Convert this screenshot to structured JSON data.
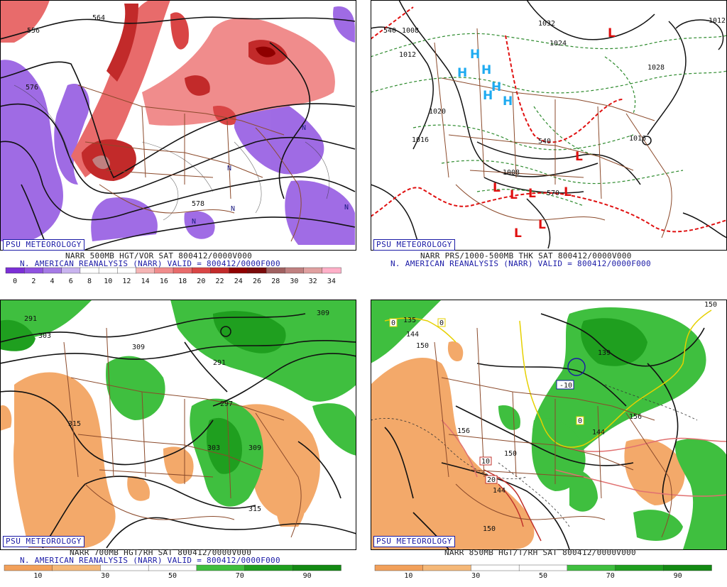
{
  "panels": [
    {
      "id": "p1",
      "badge": "PSU METEOROLOGY",
      "caption1": "NARR 500MB HGT/VOR SAT 800412/0000V000",
      "caption2": "N. AMERICAN REANALYSIS (NARR) VALID = 800412/0000F000",
      "colorbar_ticks": [
        "0",
        "2",
        "4",
        "6",
        "8",
        "10",
        "12",
        "14",
        "16",
        "18",
        "20",
        "22",
        "24",
        "26",
        "28",
        "30",
        "32",
        "34"
      ],
      "contour_labels": [
        "556",
        "564",
        "576",
        "578"
      ],
      "markers": [
        "N",
        "N",
        "N",
        "N",
        "N"
      ]
    },
    {
      "id": "p2",
      "badge": "PSU METEOROLOGY",
      "caption1": "NARR PRS/1000-500MB THK SAT 800412/0000V000",
      "caption2": "N. AMERICAN REANALYSIS (NARR) VALID = 800412/0000F000",
      "contour_labels": [
        "540",
        "1008",
        "1012",
        "1032",
        "1024",
        "1020",
        "1016",
        "1016",
        "1008",
        "540",
        "570",
        "1012",
        "1028"
      ],
      "highs": [
        "H",
        "H",
        "H",
        "H",
        "H",
        "H"
      ],
      "lows": [
        "L",
        "L",
        "L",
        "L",
        "L",
        "L",
        "L",
        "L"
      ]
    },
    {
      "id": "p3",
      "badge": "PSU METEOROLOGY",
      "caption1": "NARR 700MB HGT/RH SAT 800412/0000V000",
      "caption2": "N. AMERICAN REANALYSIS (NARR) VALID = 800412/0000F000",
      "colorbar_ticks": [
        "10",
        "30",
        "50",
        "70",
        "90"
      ],
      "contour_labels": [
        "291",
        "303",
        "309",
        "309",
        "291",
        "297",
        "315",
        "303",
        "309",
        "315"
      ]
    },
    {
      "id": "p4",
      "badge": "PSU METEOROLOGY",
      "caption1": "NARR 850MB HGT/T/RH SAT 800412/0000V000",
      "colorbar_ticks": [
        "10",
        "30",
        "50",
        "70",
        "90"
      ],
      "contour_labels": [
        "135",
        "144",
        "150",
        "139",
        "-10",
        "156",
        "150",
        "144",
        "156",
        "150",
        "10",
        "20",
        "144",
        "150",
        "0",
        "0",
        "0"
      ]
    }
  ],
  "colors": {
    "vor_scale": [
      "#7b2fd6",
      "#8f52e0",
      "#a57ae6",
      "#c9b4ef",
      "#ffffff",
      "#ffffff",
      "#ffffff",
      "#f5b5b5",
      "#f08c8c",
      "#e86b6b",
      "#d94545",
      "#c22a2a",
      "#8f0000",
      "#7a0a0a",
      "#a06060",
      "#c08080",
      "#e0a0a0",
      "#ffb0c8"
    ],
    "rh_scale": [
      "#f2a05a",
      "#f5b878",
      "#ffffff",
      "#ffffff",
      "#3fbf3f",
      "#1f9f1f",
      "#138a13"
    ],
    "height_contour": "#111111",
    "borders": "#8b4a2b",
    "thickness_dashed": "#2e8b2e",
    "thickness_red": "#e01010",
    "highs": "#1eaaf0",
    "lows": "#e01010",
    "badge": "#1a1aa6"
  }
}
